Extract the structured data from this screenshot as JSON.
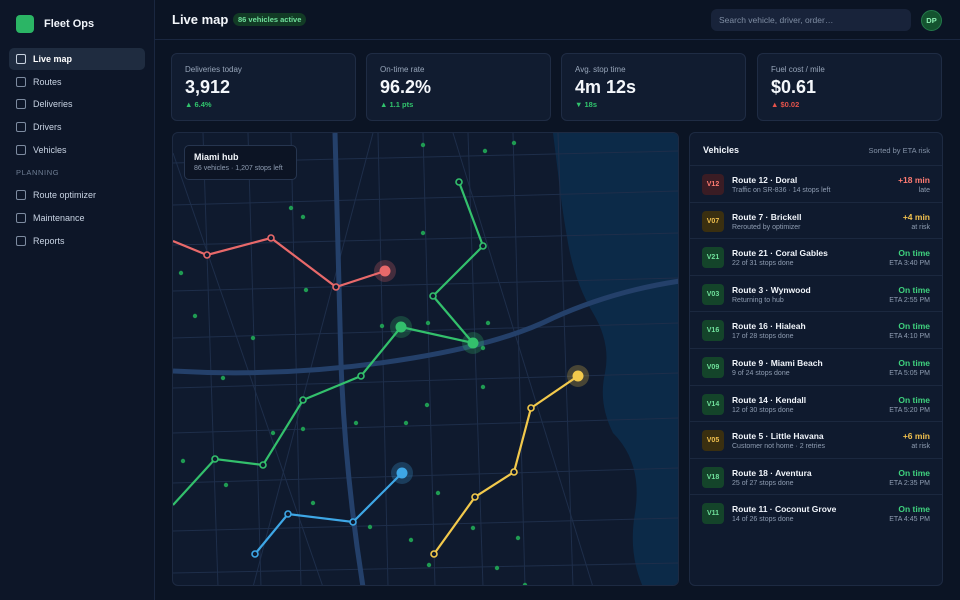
{
  "app": {
    "name": "Fleet Ops"
  },
  "sidebar": {
    "items": [
      {
        "label": "Live map",
        "active": true
      },
      {
        "label": "Routes"
      },
      {
        "label": "Deliveries"
      },
      {
        "label": "Drivers"
      },
      {
        "label": "Vehicles"
      }
    ],
    "section": "PLANNING",
    "planning_items": [
      {
        "label": "Route optimizer"
      },
      {
        "label": "Maintenance"
      },
      {
        "label": "Reports"
      }
    ]
  },
  "header": {
    "title": "Live map",
    "badge": "86 vehicles active",
    "search_placeholder": "Search vehicle, driver, order…",
    "avatar": "DP"
  },
  "kpis": [
    {
      "label": "Deliveries today",
      "value": "3,912",
      "delta": "▲ 6.4%",
      "trend": "up"
    },
    {
      "label": "On-time rate",
      "value": "96.2%",
      "delta": "▲ 1.1 pts",
      "trend": "up"
    },
    {
      "label": "Avg. stop time",
      "value": "4m 12s",
      "delta": "▼ 18s",
      "trend": "up"
    },
    {
      "label": "Fuel cost / mile",
      "value": "$0.61",
      "delta": "▲ $0.02",
      "trend": "down"
    }
  ],
  "map": {
    "hub_title": "Miami hub",
    "hub_sub": "86 vehicles · 1,207 stops left",
    "colors": {
      "red": "#e8696a",
      "green": "#33c06c",
      "blue": "#3ea7e6",
      "yellow": "#f2c94c"
    }
  },
  "vehicles": {
    "title": "Vehicles",
    "sort": "Sorted by ETA risk",
    "rows": [
      {
        "id": "V12",
        "name": "Route 12 · Doral",
        "sub": "Traffic on SR-836 · 14 stops left",
        "eta": "+18 min",
        "eta_sub": "late",
        "status": "late"
      },
      {
        "id": "V07",
        "name": "Route 7 · Brickell",
        "sub": "Rerouted by optimizer",
        "eta": "+4 min",
        "eta_sub": "at risk",
        "status": "risk"
      },
      {
        "id": "V21",
        "name": "Route 21 · Coral Gables",
        "sub": "22 of 31 stops done",
        "eta": "On time",
        "eta_sub": "ETA 3:40 PM",
        "status": "ok"
      },
      {
        "id": "V03",
        "name": "Route 3 · Wynwood",
        "sub": "Returning to hub",
        "eta": "On time",
        "eta_sub": "ETA 2:55 PM",
        "status": "ok"
      },
      {
        "id": "V16",
        "name": "Route 16 · Hialeah",
        "sub": "17 of 28 stops done",
        "eta": "On time",
        "eta_sub": "ETA 4:10 PM",
        "status": "ok"
      },
      {
        "id": "V09",
        "name": "Route 9 · Miami Beach",
        "sub": "9 of 24 stops done",
        "eta": "On time",
        "eta_sub": "ETA 5:05 PM",
        "status": "ok"
      },
      {
        "id": "V14",
        "name": "Route 14 · Kendall",
        "sub": "12 of 30 stops done",
        "eta": "On time",
        "eta_sub": "ETA 5:20 PM",
        "status": "ok"
      },
      {
        "id": "V05",
        "name": "Route 5 · Little Havana",
        "sub": "Customer not home · 2 retries",
        "eta": "+6 min",
        "eta_sub": "at risk",
        "status": "risk"
      },
      {
        "id": "V18",
        "name": "Route 18 · Aventura",
        "sub": "25 of 27 stops done",
        "eta": "On time",
        "eta_sub": "ETA 2:35 PM",
        "status": "ok"
      },
      {
        "id": "V11",
        "name": "Route 11 · Coconut Grove",
        "sub": "14 of 26 stops done",
        "eta": "On time",
        "eta_sub": "ETA 4:45 PM",
        "status": "ok"
      }
    ]
  }
}
